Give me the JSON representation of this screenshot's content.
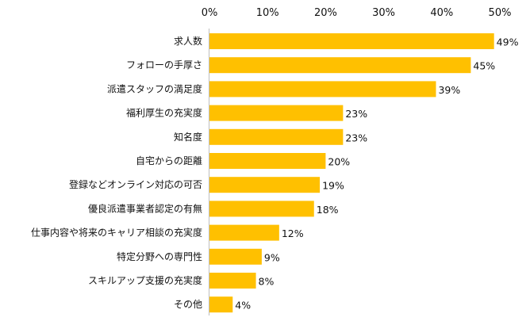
{
  "chart_data": {
    "type": "bar",
    "orientation": "horizontal",
    "categories": [
      "求人数",
      "フォローの手厚さ",
      "派遣スタッフの満足度",
      "福利厚生の充実度",
      "知名度",
      "自宅からの距離",
      "登録などオンライン対応の可否",
      "優良派遣事業者認定の有無",
      "仕事内容や将来のキャリア相談の充実度",
      "特定分野への専門性",
      "スキルアップ支援の充実度",
      "その他"
    ],
    "values": [
      49,
      45,
      39,
      23,
      23,
      20,
      19,
      18,
      12,
      9,
      8,
      4
    ],
    "value_labels": [
      "49%",
      "45%",
      "39%",
      "23%",
      "23%",
      "20%",
      "19%",
      "18%",
      "12%",
      "9%",
      "8%",
      "4%"
    ],
    "xlim": [
      0,
      50
    ],
    "x_ticks": [
      0,
      10,
      20,
      30,
      40,
      50
    ],
    "x_tick_labels": [
      "0%",
      "10%",
      "20%",
      "30%",
      "40%",
      "50%"
    ],
    "xaxis_position": "top",
    "grid": false,
    "legend": "none",
    "bar_color": "#FFC000",
    "axis_color": "#BFBFBF"
  }
}
